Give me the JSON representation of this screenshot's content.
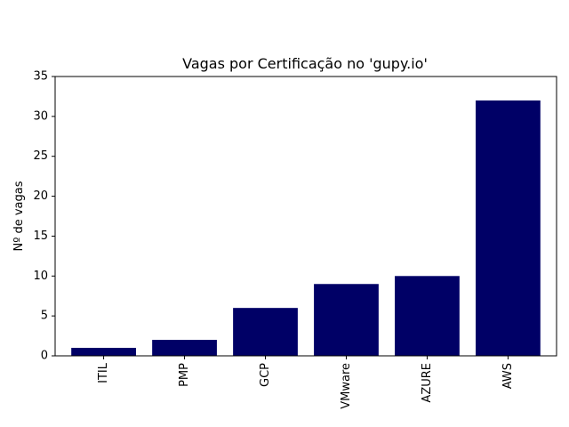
{
  "chart_data": {
    "type": "bar",
    "title": "Vagas por Certificação no 'gupy.io'",
    "xlabel": "",
    "ylabel": "Nº de vagas",
    "categories": [
      "ITIL",
      "PMP",
      "GCP",
      "VMware",
      "AZURE",
      "AWS"
    ],
    "values": [
      1,
      2,
      6,
      9,
      10,
      32
    ],
    "ylim": [
      0,
      35
    ],
    "yticks": [
      "0",
      "5",
      "10",
      "15",
      "20",
      "25",
      "30",
      "35"
    ],
    "bar_color": "#000066",
    "grid": false,
    "legend": "none"
  }
}
